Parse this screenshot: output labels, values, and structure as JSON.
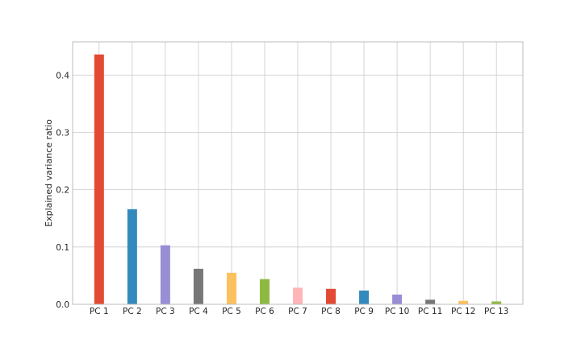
{
  "chart_data": {
    "type": "bar",
    "title": "",
    "xlabel": "",
    "ylabel": "Explained variance ratio",
    "categories": [
      "PC 1",
      "PC 2",
      "PC 3",
      "PC 4",
      "PC 5",
      "PC 6",
      "PC 7",
      "PC 8",
      "PC 9",
      "PC 10",
      "PC 11",
      "PC 12",
      "PC 13"
    ],
    "values": [
      0.436,
      0.166,
      0.103,
      0.062,
      0.055,
      0.044,
      0.029,
      0.027,
      0.024,
      0.017,
      0.008,
      0.006,
      0.005
    ],
    "colors": [
      "#E24A33",
      "#348ABD",
      "#988ED5",
      "#777777",
      "#FBC15E",
      "#8EBA42",
      "#FFB5B8",
      "#E24A33",
      "#348ABD",
      "#988ED5",
      "#777777",
      "#FBC15E",
      "#8EBA42"
    ],
    "yticks": [
      0.0,
      0.1,
      0.2,
      0.3,
      0.4
    ],
    "ytick_labels": [
      "0.0",
      "0.1",
      "0.2",
      "0.3",
      "0.4"
    ],
    "ylim": [
      0,
      0.458
    ],
    "grid": true,
    "legend": false
  }
}
